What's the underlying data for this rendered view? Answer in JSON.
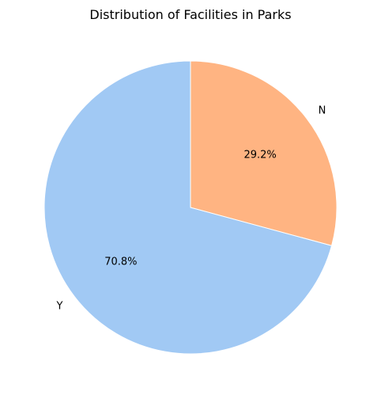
{
  "chart_data": {
    "type": "pie",
    "title": "Distribution of Facilities in Parks",
    "labels": [
      "Y",
      "N"
    ],
    "values": [
      70.8,
      29.2
    ],
    "percent_labels": [
      "70.8%",
      "29.2%"
    ],
    "colors": [
      "#a1c9f4",
      "#ffb482"
    ],
    "start_angle_deg": 90,
    "direction": "counterclockwise",
    "legend": "none"
  }
}
